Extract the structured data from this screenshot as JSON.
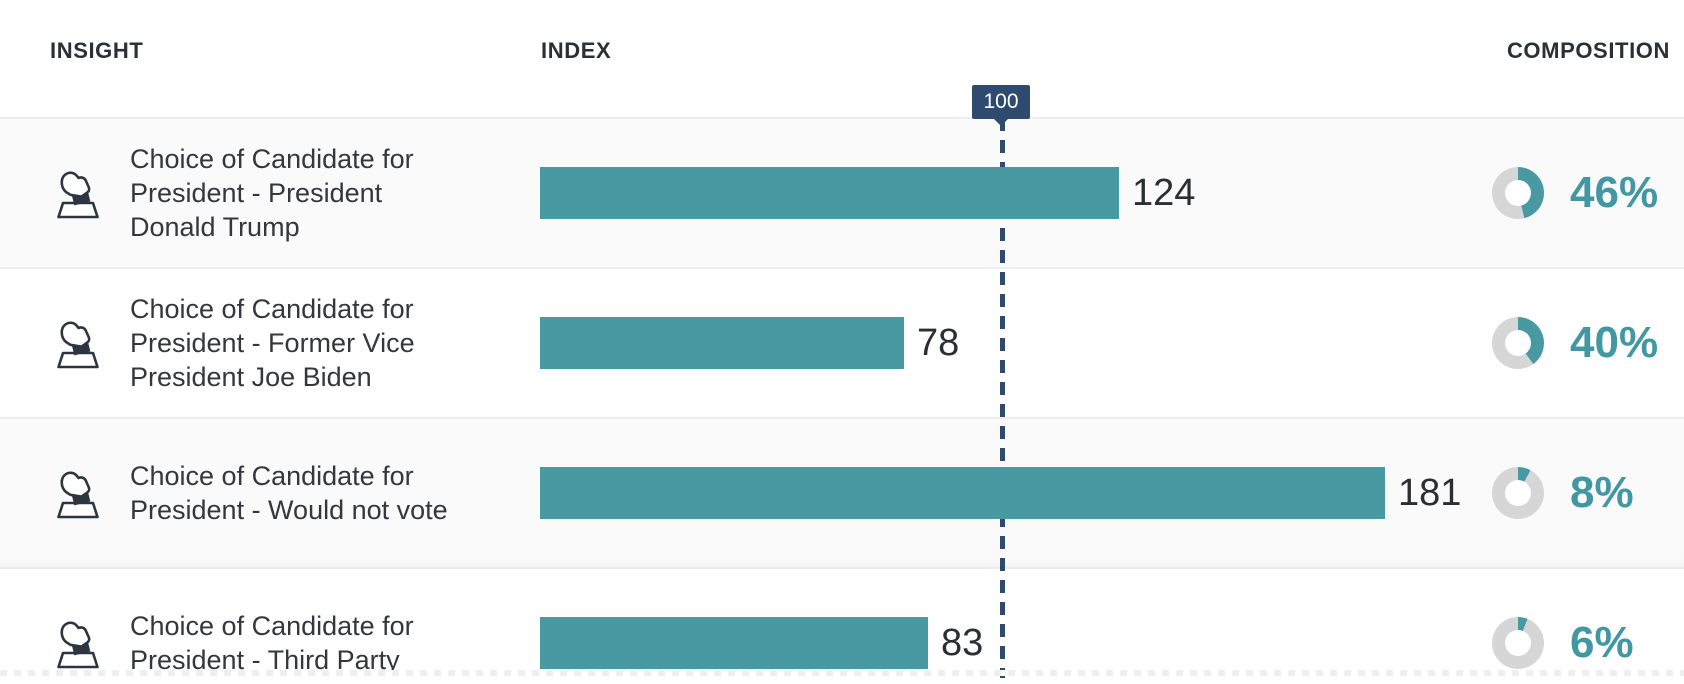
{
  "header": {
    "insight": "INSIGHT",
    "index": "INDEX",
    "composition": "COMPOSITION"
  },
  "reference": {
    "label": "100",
    "value": 100
  },
  "colors": {
    "bar_teal": "#4899A2",
    "percent_teal": "#4197A2",
    "navy": "#2E4A6E",
    "donut_gray": "#D6D6D6"
  },
  "rows": [
    {
      "icon": "ballot-box",
      "label": "Choice of Candidate for\nPresident - President\nDonald Trump",
      "index": 124,
      "index_label": "124",
      "composition_pct": 46,
      "composition_label": "46%"
    },
    {
      "icon": "ballot-box",
      "label": "Choice of Candidate for\nPresident - Former Vice\nPresident Joe Biden",
      "index": 78,
      "index_label": "78",
      "composition_pct": 40,
      "composition_label": "40%"
    },
    {
      "icon": "ballot-box",
      "label": "Choice of Candidate for\nPresident - Would not vote",
      "index": 181,
      "index_label": "181",
      "composition_pct": 8,
      "composition_label": "8%"
    },
    {
      "icon": "ballot-box",
      "label": "Choice of Candidate for\nPresident - Third Party",
      "index": 83,
      "index_label": "83",
      "composition_pct": 6,
      "composition_label": "6%"
    }
  ],
  "chart_data": {
    "type": "bar",
    "orientation": "horizontal",
    "columns": [
      "INSIGHT",
      "INDEX",
      "COMPOSITION"
    ],
    "categories": [
      "Choice of Candidate for President - President Donald Trump",
      "Choice of Candidate for President - Former Vice President Joe Biden",
      "Choice of Candidate for President - Would not vote",
      "Choice of Candidate for President - Third Party"
    ],
    "series": [
      {
        "name": "Index",
        "values": [
          124,
          78,
          181,
          83
        ]
      },
      {
        "name": "Composition %",
        "values": [
          46,
          40,
          8,
          6
        ]
      }
    ],
    "reference_line": 100,
    "xlim": [
      0,
      200
    ],
    "grid": false,
    "legend": false
  }
}
